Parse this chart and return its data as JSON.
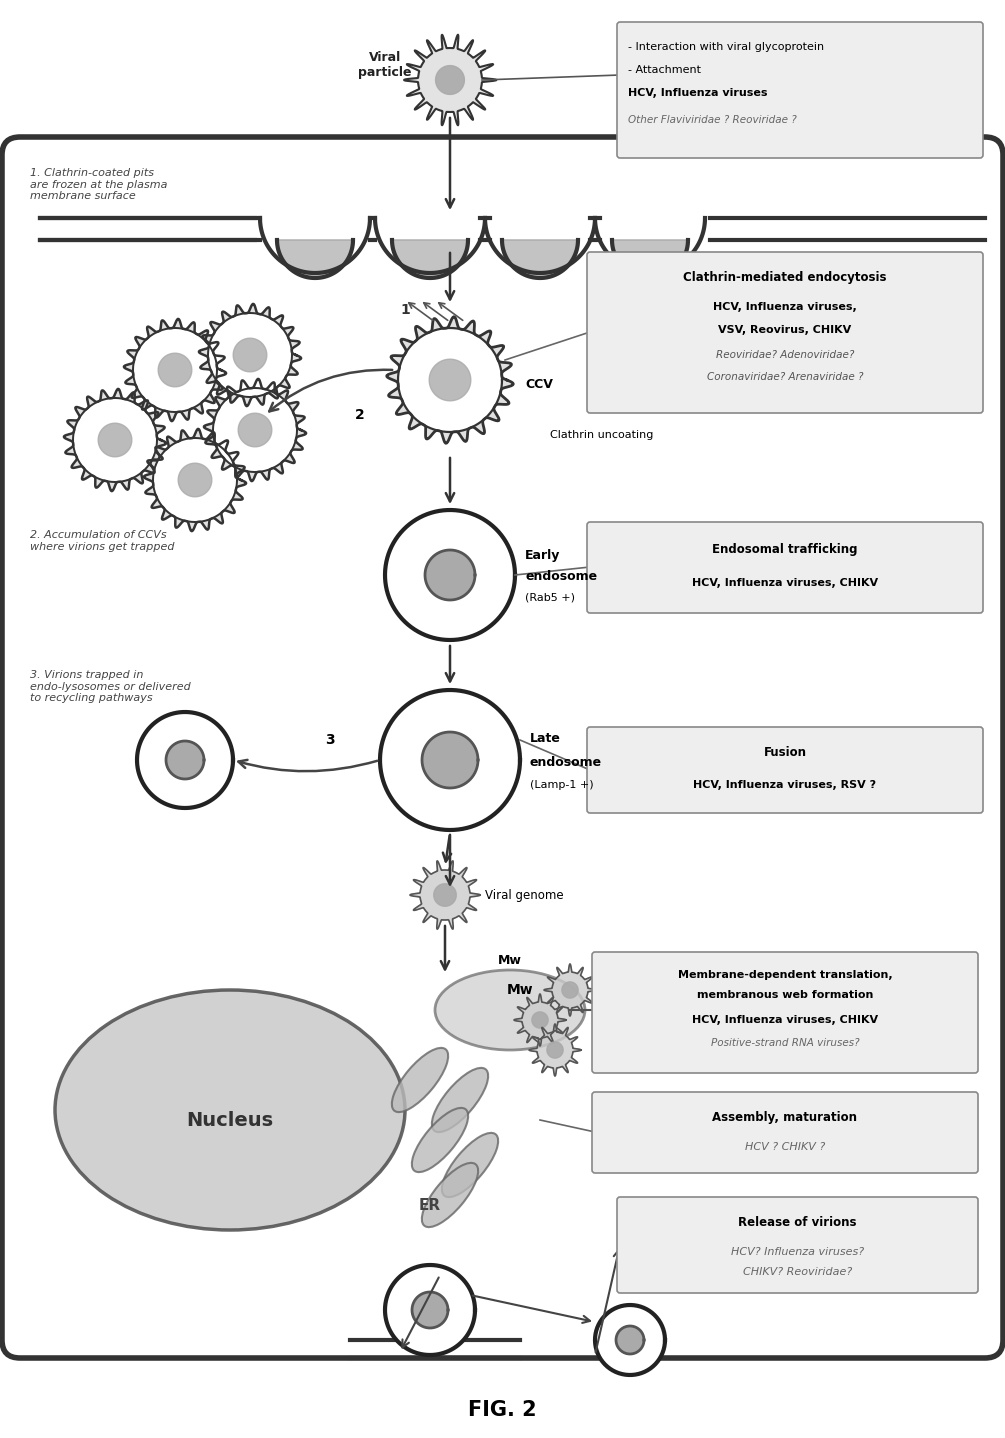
{
  "fig_label": "FIG. 2",
  "bg_color": "#ffffff",
  "cell_fill": "#f0f0f0",
  "cell_edge": "#333333",
  "box_bg": "#eeeeee",
  "box_edge": "#888888",
  "title_top_box": {
    "lines": [
      "- Interaction with viral glycoprotein",
      "- Attachment",
      "HCV, Influenza viruses",
      "Other Flaviviridae ? Reoviridae ?"
    ]
  },
  "box1": {
    "title": "Clathrin-mediated endocytosis",
    "lines": [
      "HCV, Influenza viruses,",
      "VSV, Reovirus, CHIKV",
      "Reoviridae? Adenoviridae?",
      "Coronaviridae? Arenaviridae ?"
    ]
  },
  "box2": {
    "title": "Endosomal trafficking",
    "lines": [
      "HCV, Influenza viruses, CHIKV"
    ]
  },
  "box3": {
    "title": "Fusion",
    "lines": [
      "HCV, Influenza viruses, RSV ?"
    ]
  },
  "box4": {
    "title_lines": [
      "Membrane-dependent translation,",
      "membranous web formation"
    ],
    "lines": [
      "HCV, Influenza viruses, CHIKV",
      "Positive-strand RNA viruses?"
    ]
  },
  "box5": {
    "title": "Assembly, maturation",
    "lines": [
      "HCV ? CHIKV ?"
    ]
  },
  "box6": {
    "title": "Release of virions",
    "lines": [
      "HCV? Influenza viruses?",
      "CHIKV? Reoviridae?"
    ]
  },
  "left_annotations": [
    "1. Clathrin-coated pits\nare frozen at the plasma\nmembrane surface",
    "2. Accumulation of CCVs\nwhere virions get trapped",
    "3. Virions trapped in\nendo-lysosomes or delivered\nto recycling pathways"
  ],
  "organelle_labels": {
    "nucleus": "Nucleus",
    "mw": "Mw",
    "er": "ER",
    "ccv": "CCV",
    "early_endo": [
      "Early",
      "endosome",
      "(Rab5 +)"
    ],
    "late_endo": [
      "Late",
      "endosome",
      "(Lamp-1 +)"
    ],
    "clathrin_uncoating": "Clathrin uncoating",
    "viral_particle": "Viral\nparticle",
    "viral_genome": "Viral genome"
  }
}
